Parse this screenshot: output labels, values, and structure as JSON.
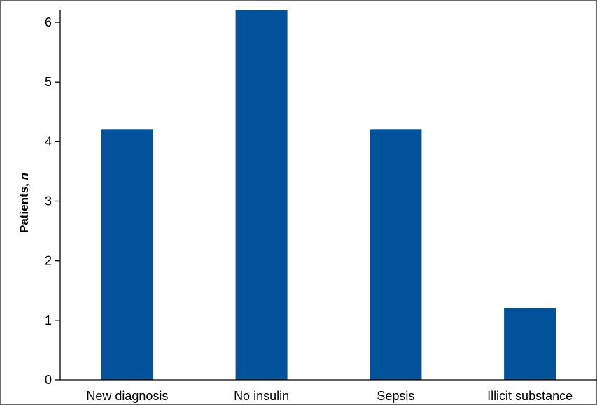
{
  "chart_data": {
    "type": "bar",
    "categories": [
      "New diagnosis",
      "No insulin",
      "Sepsis",
      "Illicit substance"
    ],
    "values": [
      4.2,
      6.2,
      4.2,
      1.2
    ],
    "title": "",
    "xlabel": "",
    "ylabel_main": "Patients, ",
    "ylabel_italic": "n",
    "ylim": [
      0,
      6.2
    ],
    "yticks": [
      0,
      1,
      2,
      3,
      4,
      5,
      6
    ],
    "grid": false,
    "bar_color": "#00529b"
  }
}
